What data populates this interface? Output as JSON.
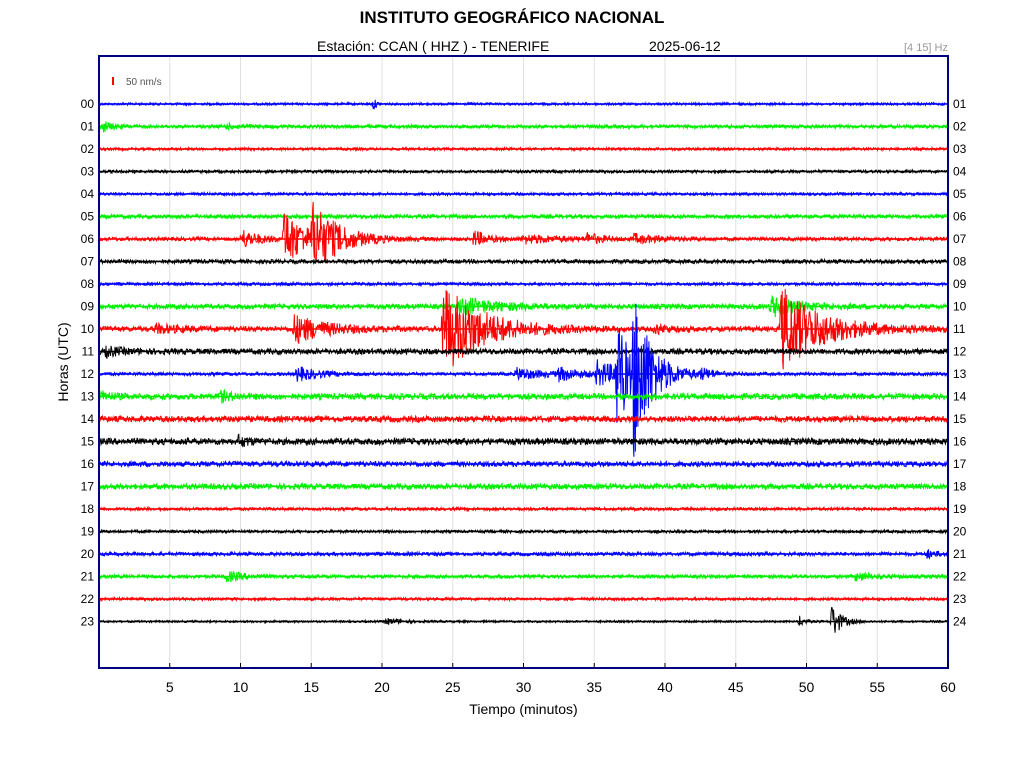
{
  "header": {
    "title": "INSTITUTO GEOGRÁFICO NACIONAL",
    "station": "Estación:  CCAN ( HHZ ) - TENERIFE",
    "date": "2025-06-12",
    "filter": "[4 15] Hz",
    "scale_label": "50 nm/s"
  },
  "colors": {
    "blue": "#0000ff",
    "green": "#00ee00",
    "red": "#ff0000",
    "black": "#000000",
    "frame": "#000080",
    "grid": "#e0e0e0"
  },
  "chart_data": {
    "type": "line",
    "title": "INSTITUTO GEOGRÁFICO NACIONAL",
    "xlabel": "Tiempo (minutos)",
    "ylabel": "Horas (UTC)",
    "xlim": [
      0,
      60
    ],
    "x_ticks": [
      5,
      10,
      15,
      20,
      25,
      30,
      35,
      40,
      45,
      50,
      55,
      60
    ],
    "grid": true,
    "traces": [
      {
        "left": "00",
        "right": "01",
        "color": "blue",
        "noise": 1.2,
        "events": [
          {
            "t": 19.4,
            "amp": 6,
            "dur": 0.3
          }
        ]
      },
      {
        "left": "01",
        "right": "02",
        "color": "green",
        "noise": 1.8,
        "events": [
          {
            "t": 0.3,
            "amp": 5,
            "dur": 1.0
          },
          {
            "t": 9,
            "amp": 2,
            "dur": 2
          }
        ]
      },
      {
        "left": "02",
        "right": "03",
        "color": "red",
        "noise": 1.3,
        "events": []
      },
      {
        "left": "03",
        "right": "04",
        "color": "black",
        "noise": 1.4,
        "events": []
      },
      {
        "left": "04",
        "right": "05",
        "color": "blue",
        "noise": 1.4,
        "events": []
      },
      {
        "left": "05",
        "right": "06",
        "color": "green",
        "noise": 2.0,
        "events": []
      },
      {
        "left": "06",
        "right": "07",
        "color": "red",
        "noise": 1.8,
        "events": [
          {
            "t": 10.1,
            "amp": 9,
            "dur": 2.0
          },
          {
            "t": 13.1,
            "amp": 28,
            "dur": 2.5
          },
          {
            "t": 15.1,
            "amp": 30,
            "dur": 3.0
          },
          {
            "t": 26.5,
            "amp": 8,
            "dur": 1.5
          },
          {
            "t": 30,
            "amp": 4,
            "dur": 4.5
          },
          {
            "t": 34.5,
            "amp": 5,
            "dur": 1.5
          },
          {
            "t": 37.8,
            "amp": 4,
            "dur": 3
          }
        ]
      },
      {
        "left": "07",
        "right": "08",
        "color": "black",
        "noise": 2.0,
        "events": []
      },
      {
        "left": "08",
        "right": "09",
        "color": "blue",
        "noise": 1.5,
        "events": []
      },
      {
        "left": "09",
        "right": "10",
        "color": "green",
        "noise": 2.5,
        "events": [
          {
            "t": 25.5,
            "amp": 9,
            "dur": 4
          },
          {
            "t": 47.5,
            "amp": 10,
            "dur": 3
          }
        ]
      },
      {
        "left": "10",
        "right": "11",
        "color": "red",
        "noise": 2.5,
        "events": [
          {
            "t": 4,
            "amp": 4,
            "dur": 3
          },
          {
            "t": 13.8,
            "amp": 14,
            "dur": 3.5
          },
          {
            "t": 24.3,
            "amp": 45,
            "dur": 4.5
          },
          {
            "t": 39.3,
            "amp": 5,
            "dur": 1.5
          },
          {
            "t": 48.2,
            "amp": 42,
            "dur": 4.5
          }
        ]
      },
      {
        "left": "11",
        "right": "12",
        "color": "black",
        "noise": 2.8,
        "events": [
          {
            "t": 0.5,
            "amp": 4,
            "dur": 2
          }
        ]
      },
      {
        "left": "12",
        "right": "13",
        "color": "blue",
        "noise": 1.6,
        "events": [
          {
            "t": 14,
            "amp": 7,
            "dur": 2.5
          },
          {
            "t": 29.5,
            "amp": 6,
            "dur": 3
          },
          {
            "t": 32.5,
            "amp": 6,
            "dur": 2.5
          },
          {
            "t": 35.2,
            "amp": 12,
            "dur": 3
          },
          {
            "t": 36.6,
            "amp": 62,
            "dur": 1.2
          },
          {
            "t": 37.8,
            "amp": 78,
            "dur": 2
          },
          {
            "t": 42.5,
            "amp": 4,
            "dur": 2
          }
        ]
      },
      {
        "left": "13",
        "right": "14",
        "color": "green",
        "noise": 3.0,
        "events": [
          {
            "t": 0.2,
            "amp": 4,
            "dur": 1.2
          },
          {
            "t": 8.5,
            "amp": 5,
            "dur": 1.5
          }
        ]
      },
      {
        "left": "14",
        "right": "15",
        "color": "red",
        "noise": 3.0,
        "events": []
      },
      {
        "left": "15",
        "right": "16",
        "color": "black",
        "noise": 3.2,
        "events": [
          {
            "t": 9.8,
            "amp": 5,
            "dur": 1.2
          }
        ]
      },
      {
        "left": "16",
        "right": "17",
        "color": "blue",
        "noise": 2.6,
        "events": []
      },
      {
        "left": "17",
        "right": "18",
        "color": "green",
        "noise": 2.8,
        "events": []
      },
      {
        "left": "18",
        "right": "19",
        "color": "red",
        "noise": 1.5,
        "events": []
      },
      {
        "left": "19",
        "right": "20",
        "color": "black",
        "noise": 1.4,
        "events": []
      },
      {
        "left": "20",
        "right": "21",
        "color": "blue",
        "noise": 1.8,
        "events": [
          {
            "t": 58.5,
            "amp": 4,
            "dur": 1
          }
        ]
      },
      {
        "left": "21",
        "right": "22",
        "color": "green",
        "noise": 1.8,
        "events": [
          {
            "t": 9,
            "amp": 5,
            "dur": 2
          },
          {
            "t": 53.5,
            "amp": 4,
            "dur": 2
          }
        ]
      },
      {
        "left": "22",
        "right": "23",
        "color": "red",
        "noise": 1.4,
        "events": []
      },
      {
        "left": "23",
        "right": "24",
        "color": "black",
        "noise": 1.0,
        "events": [
          {
            "t": 20.3,
            "amp": 3,
            "dur": 2
          },
          {
            "t": 49.5,
            "amp": 5,
            "dur": 0.6
          },
          {
            "t": 51.8,
            "amp": 18,
            "dur": 1.0
          }
        ]
      }
    ]
  }
}
